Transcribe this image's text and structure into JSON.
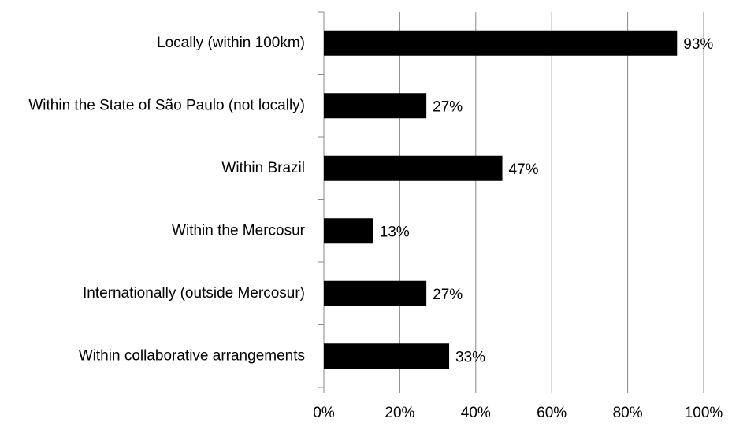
{
  "chart_data": {
    "type": "bar",
    "orientation": "horizontal",
    "categories": [
      "Locally (within 100km)",
      "Within the State of São Paulo (not locally)",
      "Within Brazil",
      "Within the Mercosur",
      "Internationally (outside Mercosur)",
      "Within collaborative arrangements"
    ],
    "values": [
      93,
      27,
      47,
      13,
      27,
      33
    ],
    "value_labels": [
      "93%",
      "27%",
      "47%",
      "13%",
      "27%",
      "33%"
    ],
    "color": "#000000",
    "xlim": [
      0,
      100
    ],
    "xticks": [
      {
        "value": 0,
        "label": "0%"
      },
      {
        "value": 20,
        "label": "20%"
      },
      {
        "value": 40,
        "label": "40%"
      },
      {
        "value": 60,
        "label": "60%"
      },
      {
        "value": 80,
        "label": "80%"
      },
      {
        "value": 100,
        "label": "100%"
      }
    ],
    "grid": true
  }
}
